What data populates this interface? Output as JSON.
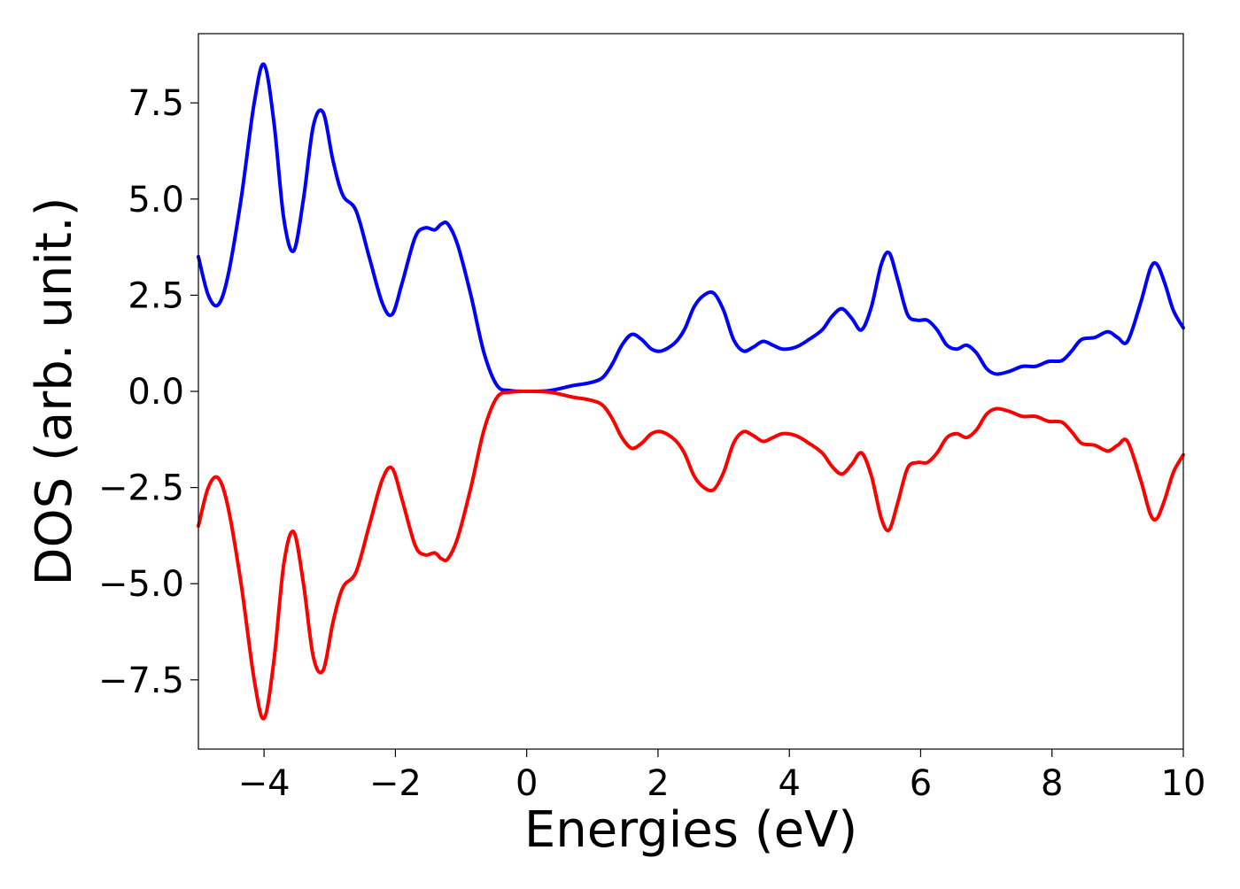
{
  "chart_data": {
    "type": "line",
    "title": "",
    "xlabel": "Energies (eV)",
    "ylabel": "DOS (arb. unit.)",
    "xlim": [
      -5,
      10
    ],
    "ylim": [
      -9.3,
      9.3
    ],
    "grid": false,
    "x_ticks": [
      -4,
      -2,
      0,
      2,
      4,
      6,
      8,
      10
    ],
    "x_tick_labels": [
      "−4",
      "−2",
      "0",
      "2",
      "4",
      "6",
      "8",
      "10"
    ],
    "y_ticks": [
      7.5,
      5.0,
      2.5,
      0.0,
      -2.5,
      -5.0,
      -7.5
    ],
    "y_tick_labels": [
      "7.5",
      "5.0",
      "2.5",
      "0.0",
      "−2.5",
      "−5.0",
      "−7.5"
    ],
    "series": [
      {
        "color": "#0000ff",
        "points": [
          [
            -5.0,
            3.5
          ],
          [
            -4.85,
            2.5
          ],
          [
            -4.7,
            2.25
          ],
          [
            -4.55,
            3.0
          ],
          [
            -4.35,
            5.0
          ],
          [
            -4.15,
            7.5
          ],
          [
            -4.0,
            8.5
          ],
          [
            -3.85,
            7.0
          ],
          [
            -3.7,
            4.5
          ],
          [
            -3.55,
            3.65
          ],
          [
            -3.4,
            5.0
          ],
          [
            -3.25,
            6.9
          ],
          [
            -3.1,
            7.25
          ],
          [
            -2.95,
            6.0
          ],
          [
            -2.8,
            5.1
          ],
          [
            -2.6,
            4.7
          ],
          [
            -2.4,
            3.5
          ],
          [
            -2.2,
            2.3
          ],
          [
            -2.05,
            2.0
          ],
          [
            -1.9,
            2.8
          ],
          [
            -1.7,
            4.0
          ],
          [
            -1.55,
            4.25
          ],
          [
            -1.4,
            4.2
          ],
          [
            -1.3,
            4.35
          ],
          [
            -1.2,
            4.35
          ],
          [
            -1.05,
            3.8
          ],
          [
            -0.85,
            2.5
          ],
          [
            -0.65,
            1.0
          ],
          [
            -0.45,
            0.15
          ],
          [
            -0.25,
            0.02
          ],
          [
            0.0,
            0.0
          ],
          [
            0.35,
            0.02
          ],
          [
            0.7,
            0.15
          ],
          [
            0.95,
            0.22
          ],
          [
            1.15,
            0.35
          ],
          [
            1.3,
            0.7
          ],
          [
            1.45,
            1.2
          ],
          [
            1.6,
            1.48
          ],
          [
            1.75,
            1.35
          ],
          [
            1.9,
            1.1
          ],
          [
            2.05,
            1.05
          ],
          [
            2.25,
            1.25
          ],
          [
            2.4,
            1.6
          ],
          [
            2.55,
            2.2
          ],
          [
            2.7,
            2.5
          ],
          [
            2.85,
            2.55
          ],
          [
            3.0,
            2.1
          ],
          [
            3.15,
            1.35
          ],
          [
            3.3,
            1.05
          ],
          [
            3.45,
            1.15
          ],
          [
            3.6,
            1.3
          ],
          [
            3.75,
            1.2
          ],
          [
            3.9,
            1.1
          ],
          [
            4.1,
            1.15
          ],
          [
            4.3,
            1.35
          ],
          [
            4.5,
            1.6
          ],
          [
            4.65,
            1.95
          ],
          [
            4.8,
            2.15
          ],
          [
            4.95,
            1.9
          ],
          [
            5.1,
            1.6
          ],
          [
            5.25,
            2.2
          ],
          [
            5.4,
            3.3
          ],
          [
            5.52,
            3.6
          ],
          [
            5.65,
            2.9
          ],
          [
            5.8,
            2.0
          ],
          [
            5.95,
            1.85
          ],
          [
            6.1,
            1.85
          ],
          [
            6.25,
            1.6
          ],
          [
            6.4,
            1.2
          ],
          [
            6.55,
            1.1
          ],
          [
            6.7,
            1.2
          ],
          [
            6.85,
            1.0
          ],
          [
            7.0,
            0.6
          ],
          [
            7.15,
            0.45
          ],
          [
            7.35,
            0.52
          ],
          [
            7.55,
            0.65
          ],
          [
            7.75,
            0.65
          ],
          [
            7.95,
            0.78
          ],
          [
            8.15,
            0.8
          ],
          [
            8.3,
            1.05
          ],
          [
            8.45,
            1.35
          ],
          [
            8.65,
            1.4
          ],
          [
            8.85,
            1.55
          ],
          [
            9.0,
            1.4
          ],
          [
            9.15,
            1.3
          ],
          [
            9.35,
            2.3
          ],
          [
            9.5,
            3.2
          ],
          [
            9.6,
            3.3
          ],
          [
            9.72,
            2.8
          ],
          [
            9.85,
            2.1
          ],
          [
            10.0,
            1.65
          ]
        ]
      },
      {
        "color": "#ff0000",
        "points": [
          [
            -5.0,
            -3.5
          ],
          [
            -4.85,
            -2.5
          ],
          [
            -4.7,
            -2.25
          ],
          [
            -4.55,
            -3.0
          ],
          [
            -4.35,
            -5.0
          ],
          [
            -4.15,
            -7.5
          ],
          [
            -4.0,
            -8.5
          ],
          [
            -3.85,
            -7.0
          ],
          [
            -3.7,
            -4.5
          ],
          [
            -3.55,
            -3.65
          ],
          [
            -3.4,
            -5.0
          ],
          [
            -3.25,
            -6.9
          ],
          [
            -3.1,
            -7.25
          ],
          [
            -2.95,
            -6.0
          ],
          [
            -2.8,
            -5.1
          ],
          [
            -2.6,
            -4.7
          ],
          [
            -2.4,
            -3.5
          ],
          [
            -2.2,
            -2.3
          ],
          [
            -2.05,
            -2.0
          ],
          [
            -1.9,
            -2.8
          ],
          [
            -1.7,
            -4.0
          ],
          [
            -1.55,
            -4.25
          ],
          [
            -1.4,
            -4.2
          ],
          [
            -1.3,
            -4.35
          ],
          [
            -1.2,
            -4.35
          ],
          [
            -1.05,
            -3.8
          ],
          [
            -0.85,
            -2.5
          ],
          [
            -0.65,
            -1.0
          ],
          [
            -0.45,
            -0.15
          ],
          [
            -0.25,
            -0.02
          ],
          [
            0.0,
            0.0
          ],
          [
            0.35,
            -0.02
          ],
          [
            0.7,
            -0.15
          ],
          [
            0.95,
            -0.22
          ],
          [
            1.15,
            -0.35
          ],
          [
            1.3,
            -0.7
          ],
          [
            1.45,
            -1.2
          ],
          [
            1.6,
            -1.48
          ],
          [
            1.75,
            -1.35
          ],
          [
            1.9,
            -1.1
          ],
          [
            2.05,
            -1.05
          ],
          [
            2.25,
            -1.25
          ],
          [
            2.4,
            -1.6
          ],
          [
            2.55,
            -2.2
          ],
          [
            2.7,
            -2.5
          ],
          [
            2.85,
            -2.55
          ],
          [
            3.0,
            -2.1
          ],
          [
            3.15,
            -1.35
          ],
          [
            3.3,
            -1.05
          ],
          [
            3.45,
            -1.15
          ],
          [
            3.6,
            -1.3
          ],
          [
            3.75,
            -1.2
          ],
          [
            3.9,
            -1.1
          ],
          [
            4.1,
            -1.15
          ],
          [
            4.3,
            -1.35
          ],
          [
            4.5,
            -1.6
          ],
          [
            4.65,
            -1.95
          ],
          [
            4.8,
            -2.15
          ],
          [
            4.95,
            -1.9
          ],
          [
            5.1,
            -1.6
          ],
          [
            5.25,
            -2.2
          ],
          [
            5.4,
            -3.3
          ],
          [
            5.52,
            -3.6
          ],
          [
            5.65,
            -2.9
          ],
          [
            5.8,
            -2.0
          ],
          [
            5.95,
            -1.85
          ],
          [
            6.1,
            -1.85
          ],
          [
            6.25,
            -1.6
          ],
          [
            6.4,
            -1.2
          ],
          [
            6.55,
            -1.1
          ],
          [
            6.7,
            -1.2
          ],
          [
            6.85,
            -1.0
          ],
          [
            7.0,
            -0.6
          ],
          [
            7.15,
            -0.45
          ],
          [
            7.35,
            -0.52
          ],
          [
            7.55,
            -0.65
          ],
          [
            7.75,
            -0.65
          ],
          [
            7.95,
            -0.78
          ],
          [
            8.15,
            -0.8
          ],
          [
            8.3,
            -1.05
          ],
          [
            8.45,
            -1.35
          ],
          [
            8.65,
            -1.4
          ],
          [
            8.85,
            -1.55
          ],
          [
            9.0,
            -1.4
          ],
          [
            9.15,
            -1.3
          ],
          [
            9.35,
            -2.3
          ],
          [
            9.5,
            -3.2
          ],
          [
            9.6,
            -3.3
          ],
          [
            9.72,
            -2.8
          ],
          [
            9.85,
            -2.1
          ],
          [
            10.0,
            -1.65
          ]
        ]
      }
    ]
  }
}
